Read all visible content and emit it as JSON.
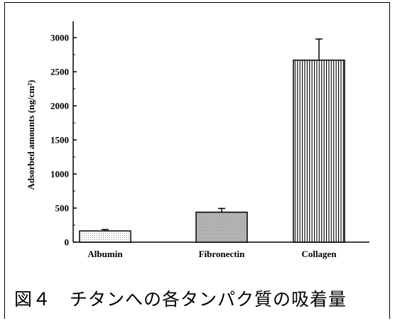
{
  "chart_data": {
    "type": "bar",
    "categories": [
      "Albumin",
      "Fibronectin",
      "Collagen"
    ],
    "values": [
      165,
      440,
      2670
    ],
    "errors": [
      20,
      55,
      310
    ],
    "ylabel": "Adsorbed amounts (ng/cm²)",
    "ylim": [
      0,
      3000
    ],
    "yticks": [
      "0",
      "500",
      "1000",
      "1500",
      "2000",
      "2500",
      "3000"
    ],
    "grid": false,
    "fills": [
      "dotted",
      "gray-dense",
      "vertical-stripes"
    ]
  },
  "caption": "図４　チタンへの各タンパク質の吸着量"
}
